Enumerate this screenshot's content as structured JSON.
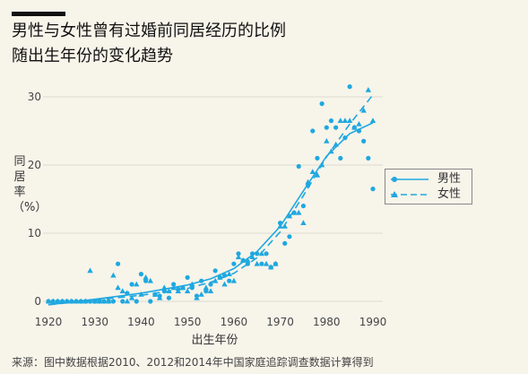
{
  "header": {
    "title_line1": "男性与女性曾有过婚前同居经历的比例",
    "title_line2": "随出生年份的变化趋势"
  },
  "source": "来源：图中数据根据2010、2012和2014年中国家庭追踪调查数据计算得到",
  "colors": {
    "accent": "#1fa8e0",
    "background": "#f7f4ea",
    "grid": "#dcdad2"
  },
  "chart_data": {
    "type": "scatter",
    "xlabel": "出生年份",
    "ylabel": "同居率（%）",
    "xlim": [
      1919,
      1992
    ],
    "ylim": [
      -1,
      32
    ],
    "xticks": [
      1920,
      1930,
      1940,
      1950,
      1960,
      1970,
      1980,
      1990
    ],
    "yticks": [
      0,
      10,
      20,
      30
    ],
    "grid": "horizontal",
    "legend_position": "right",
    "series": [
      {
        "name": "男性",
        "marker": "circle",
        "line": "solid",
        "points": [
          [
            1920,
            0
          ],
          [
            1921,
            0
          ],
          [
            1922,
            0
          ],
          [
            1923,
            0
          ],
          [
            1924,
            0
          ],
          [
            1925,
            0
          ],
          [
            1926,
            0
          ],
          [
            1927,
            0
          ],
          [
            1928,
            0
          ],
          [
            1929,
            0
          ],
          [
            1930,
            0
          ],
          [
            1931,
            0
          ],
          [
            1932,
            0
          ],
          [
            1933,
            0
          ],
          [
            1934,
            0
          ],
          [
            1935,
            5.5
          ],
          [
            1936,
            0
          ],
          [
            1937,
            1.2
          ],
          [
            1938,
            2.5
          ],
          [
            1939,
            0
          ],
          [
            1940,
            4
          ],
          [
            1941,
            3
          ],
          [
            1942,
            0
          ],
          [
            1943,
            1
          ],
          [
            1944,
            0.8
          ],
          [
            1945,
            1.5
          ],
          [
            1946,
            0.5
          ],
          [
            1947,
            2.5
          ],
          [
            1948,
            1.8
          ],
          [
            1949,
            2
          ],
          [
            1950,
            3.5
          ],
          [
            1951,
            2
          ],
          [
            1952,
            0.8
          ],
          [
            1953,
            3
          ],
          [
            1954,
            1.5
          ],
          [
            1955,
            2.5
          ],
          [
            1956,
            4.5
          ],
          [
            1957,
            3.5
          ],
          [
            1958,
            3.8
          ],
          [
            1959,
            3
          ],
          [
            1960,
            5.5
          ],
          [
            1961,
            7
          ],
          [
            1962,
            6
          ],
          [
            1963,
            5.5
          ],
          [
            1964,
            7
          ],
          [
            1965,
            7
          ],
          [
            1966,
            5.5
          ],
          [
            1967,
            7
          ],
          [
            1968,
            5
          ],
          [
            1969,
            5.5
          ],
          [
            1970,
            11.5
          ],
          [
            1971,
            8.5
          ],
          [
            1972,
            9.5
          ],
          [
            1973,
            13
          ],
          [
            1974,
            19.8
          ],
          [
            1975,
            14
          ],
          [
            1976,
            17
          ],
          [
            1977,
            25
          ],
          [
            1978,
            21
          ],
          [
            1979,
            29
          ],
          [
            1980,
            25.5
          ],
          [
            1981,
            26.5
          ],
          [
            1982,
            25.5
          ],
          [
            1983,
            21
          ],
          [
            1984,
            24
          ],
          [
            1985,
            31.5
          ],
          [
            1986,
            25.5
          ],
          [
            1987,
            25
          ],
          [
            1988,
            23.5
          ],
          [
            1989,
            21
          ],
          [
            1990,
            16.5
          ]
        ],
        "fit": [
          [
            1920,
            -0.5
          ],
          [
            1930,
            0.3
          ],
          [
            1940,
            1.2
          ],
          [
            1950,
            2.4
          ],
          [
            1955,
            3.3
          ],
          [
            1960,
            4.8
          ],
          [
            1965,
            7.3
          ],
          [
            1970,
            11
          ],
          [
            1975,
            16.2
          ],
          [
            1980,
            21.3
          ],
          [
            1985,
            24.6
          ],
          [
            1990,
            26.2
          ]
        ]
      },
      {
        "name": "女性",
        "marker": "triangle",
        "line": "dashed",
        "points": [
          [
            1920,
            0
          ],
          [
            1921,
            0
          ],
          [
            1922,
            0
          ],
          [
            1923,
            0
          ],
          [
            1924,
            0
          ],
          [
            1925,
            0
          ],
          [
            1926,
            0
          ],
          [
            1927,
            0
          ],
          [
            1928,
            0
          ],
          [
            1929,
            4.5
          ],
          [
            1930,
            0
          ],
          [
            1931,
            0
          ],
          [
            1932,
            0
          ],
          [
            1933,
            0
          ],
          [
            1934,
            3.8
          ],
          [
            1935,
            2
          ],
          [
            1936,
            1.5
          ],
          [
            1937,
            0
          ],
          [
            1938,
            0.5
          ],
          [
            1939,
            2.5
          ],
          [
            1940,
            1
          ],
          [
            1941,
            3.5
          ],
          [
            1942,
            3
          ],
          [
            1943,
            1
          ],
          [
            1944,
            0.5
          ],
          [
            1945,
            2
          ],
          [
            1946,
            1.5
          ],
          [
            1947,
            2
          ],
          [
            1948,
            1.5
          ],
          [
            1949,
            2
          ],
          [
            1950,
            1.5
          ],
          [
            1951,
            2.5
          ],
          [
            1952,
            0.5
          ],
          [
            1953,
            1
          ],
          [
            1954,
            2
          ],
          [
            1955,
            1.5
          ],
          [
            1956,
            3
          ],
          [
            1957,
            3.5
          ],
          [
            1958,
            2.5
          ],
          [
            1959,
            4
          ],
          [
            1960,
            3
          ],
          [
            1961,
            6.5
          ],
          [
            1962,
            6
          ],
          [
            1963,
            6
          ],
          [
            1964,
            6.5
          ],
          [
            1965,
            5.5
          ],
          [
            1966,
            7
          ],
          [
            1967,
            5.5
          ],
          [
            1968,
            5
          ],
          [
            1969,
            5.5
          ],
          [
            1970,
            11
          ],
          [
            1971,
            11
          ],
          [
            1972,
            12.5
          ],
          [
            1973,
            13
          ],
          [
            1974,
            13
          ],
          [
            1975,
            11.5
          ],
          [
            1976,
            17.5
          ],
          [
            1977,
            19
          ],
          [
            1978,
            18.5
          ],
          [
            1979,
            20
          ],
          [
            1980,
            23.5
          ],
          [
            1981,
            22
          ],
          [
            1982,
            23
          ],
          [
            1983,
            26.5
          ],
          [
            1984,
            26.5
          ],
          [
            1985,
            26.5
          ],
          [
            1986,
            25.5
          ],
          [
            1987,
            26
          ],
          [
            1988,
            28
          ],
          [
            1989,
            31
          ],
          [
            1990,
            26.5
          ]
        ],
        "fit": [
          [
            1920,
            -0.5
          ],
          [
            1930,
            0.2
          ],
          [
            1940,
            0.9
          ],
          [
            1950,
            1.9
          ],
          [
            1955,
            2.8
          ],
          [
            1960,
            4.1
          ],
          [
            1965,
            6.4
          ],
          [
            1970,
            10.2
          ],
          [
            1975,
            15.5
          ],
          [
            1980,
            21.2
          ],
          [
            1985,
            26
          ],
          [
            1990,
            30.3
          ]
        ]
      }
    ]
  }
}
